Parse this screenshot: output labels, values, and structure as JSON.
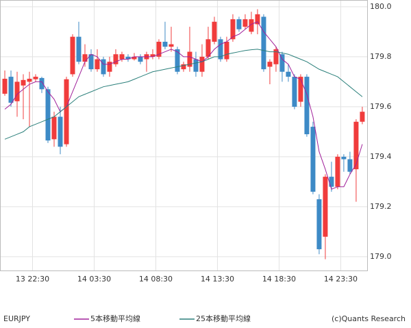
{
  "chart_data": {
    "type": "candlestick",
    "title": "EURJPY",
    "source": "(c)Quants Research",
    "up_color": "#f03c3c",
    "down_color": "#3d8ac6",
    "grid": true,
    "xlim": [
      -0.78,
      58.9
    ],
    "ylim": [
      178.945,
      180.027
    ],
    "xticks": [
      {
        "value": 4.5,
        "label": "13 22:30"
      },
      {
        "value": 14.5,
        "label": "14 03:30"
      },
      {
        "value": 24.5,
        "label": "14 08:30"
      },
      {
        "value": 34.5,
        "label": "14 13:30"
      },
      {
        "value": 44.5,
        "label": "14 18:30"
      },
      {
        "value": 54.5,
        "label": "14 23:30"
      }
    ],
    "yticks": [
      {
        "value": 179.0,
        "label": "179.0"
      },
      179.2,
      179.4,
      179.6,
      179.8,
      {
        "value": 180.0,
        "label": "180.0"
      }
    ],
    "open": [
      179.652,
      179.72,
      179.622,
      179.685,
      179.7,
      179.71,
      179.715,
      179.67,
      179.47,
      179.56,
      179.45,
      179.73,
      179.88,
      179.78,
      179.81,
      179.75,
      179.79,
      179.74,
      179.77,
      179.79,
      179.8,
      179.79,
      179.8,
      179.79,
      179.8,
      179.8,
      179.86,
      179.84,
      179.83,
      179.75,
      179.76,
      179.79,
      179.74,
      179.8,
      179.86,
      179.87,
      179.79,
      179.87,
      179.95,
      179.92,
      179.9,
      179.93,
      179.96,
      179.76,
      179.77,
      179.81,
      179.74,
      179.72,
      179.62,
      179.72,
      179.52,
      179.23,
      179.08,
      179.32,
      179.28,
      179.4,
      179.39,
      179.35,
      179.54
    ],
    "high": [
      179.745,
      179.745,
      179.74,
      179.73,
      179.74,
      179.73,
      179.72,
      179.68,
      179.58,
      179.6,
      179.72,
      179.89,
      179.94,
      179.85,
      179.83,
      179.83,
      179.8,
      179.8,
      179.83,
      179.82,
      179.81,
      179.815,
      179.81,
      179.82,
      179.83,
      179.87,
      179.94,
      179.92,
      179.84,
      179.78,
      179.92,
      179.82,
      179.85,
      179.92,
      179.96,
      179.88,
      179.88,
      179.97,
      179.96,
      179.97,
      179.98,
      179.99,
      179.97,
      179.79,
      179.84,
      179.82,
      179.77,
      179.73,
      179.73,
      179.73,
      179.54,
      179.25,
      179.33,
      179.38,
      179.41,
      179.41,
      179.42,
      179.55,
      179.6
    ],
    "low": [
      179.644,
      179.6,
      179.56,
      179.55,
      179.52,
      179.7,
      179.655,
      179.455,
      179.44,
      179.41,
      179.44,
      179.72,
      179.77,
      179.76,
      179.74,
      179.74,
      179.72,
      179.72,
      179.76,
      179.78,
      179.78,
      179.785,
      179.77,
      179.74,
      179.79,
      179.79,
      179.83,
      179.82,
      179.73,
      179.74,
      179.74,
      179.72,
      179.72,
      179.79,
      179.85,
      179.78,
      179.78,
      179.86,
      179.9,
      179.91,
      179.89,
      179.89,
      179.74,
      179.69,
      179.74,
      179.7,
      179.7,
      179.59,
      179.6,
      179.48,
      179.25,
      179.01,
      178.99,
      179.26,
      179.27,
      179.34,
      179.33,
      179.22,
      179.53
    ],
    "close": [
      179.712,
      179.616,
      179.7,
      179.707,
      179.712,
      179.72,
      179.67,
      179.465,
      179.56,
      179.44,
      179.71,
      179.88,
      179.78,
      179.81,
      179.75,
      179.79,
      179.73,
      179.78,
      179.81,
      179.81,
      179.79,
      179.8,
      179.78,
      179.81,
      179.81,
      179.86,
      179.84,
      179.85,
      179.74,
      179.77,
      179.82,
      179.74,
      179.8,
      179.87,
      179.94,
      179.79,
      179.86,
      179.95,
      179.91,
      179.95,
      179.95,
      179.97,
      179.75,
      179.78,
      179.83,
      179.74,
      179.72,
      179.6,
      179.72,
      179.49,
      179.26,
      179.03,
      179.32,
      179.28,
      179.4,
      179.39,
      179.34,
      179.54,
      179.58
    ],
    "series": [
      {
        "name": "5本移動平均線",
        "color": "#a0209a",
        "values": [
          179.59,
          179.61,
          179.65,
          179.67,
          179.69,
          179.7,
          179.7,
          179.66,
          179.63,
          179.58,
          179.6,
          179.66,
          179.72,
          179.78,
          179.81,
          179.8,
          179.77,
          179.77,
          179.78,
          179.79,
          179.79,
          179.8,
          179.8,
          179.8,
          179.8,
          179.81,
          179.82,
          179.83,
          179.82,
          179.8,
          179.8,
          179.79,
          179.78,
          179.8,
          179.83,
          179.85,
          179.86,
          179.88,
          179.89,
          179.91,
          179.93,
          179.94,
          179.9,
          179.87,
          179.84,
          179.79,
          179.77,
          179.72,
          179.71,
          179.65,
          179.56,
          179.42,
          179.35,
          179.27,
          179.28,
          179.28,
          179.33,
          179.37,
          179.45
        ]
      },
      {
        "name": "25本移動平均線",
        "color": "#2a7f7a",
        "values": [
          179.47,
          179.48,
          179.49,
          179.5,
          179.52,
          179.53,
          179.54,
          179.55,
          179.56,
          179.58,
          179.6,
          179.62,
          179.64,
          179.65,
          179.66,
          179.67,
          179.68,
          179.685,
          179.69,
          179.695,
          179.7,
          179.71,
          179.72,
          179.73,
          179.74,
          179.745,
          179.75,
          179.755,
          179.76,
          179.765,
          179.77,
          179.775,
          179.78,
          179.79,
          179.8,
          179.8,
          179.81,
          179.815,
          179.82,
          179.825,
          179.828,
          179.83,
          179.825,
          179.82,
          179.82,
          179.815,
          179.81,
          179.8,
          179.79,
          179.78,
          179.765,
          179.75,
          179.74,
          179.73,
          179.72,
          179.7,
          179.68,
          179.66,
          179.64
        ]
      }
    ]
  }
}
